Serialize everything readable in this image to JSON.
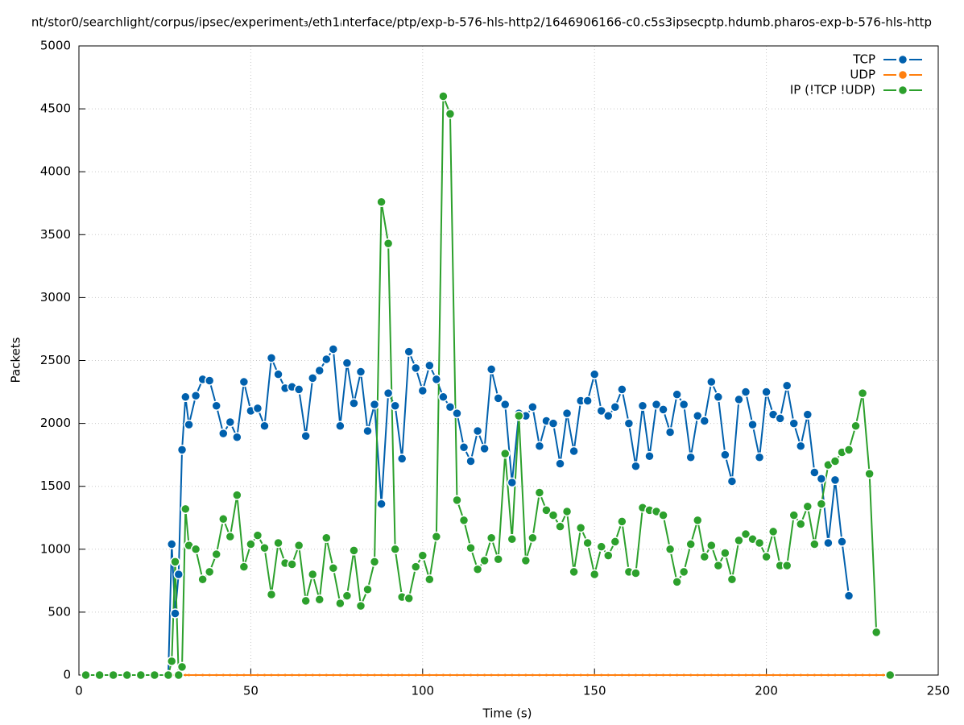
{
  "chart_data": {
    "type": "line",
    "title": "nt/stor0/searchlight/corpus/ipsec/experiment₃/eth1ᵢnterface/ptp/exp-b-576-hls-http2/1646906166-c0.c5s3ipsecptp.hdumb.pharos-exp-b-576-hls-http",
    "x_label": "Time (s)",
    "y_label": "Packets",
    "x": [
      2,
      6,
      10,
      14,
      18,
      22,
      26,
      27,
      28,
      29,
      30,
      31,
      32,
      34,
      36,
      38,
      40,
      42,
      44,
      46,
      48,
      50,
      52,
      54,
      56,
      58,
      60,
      62,
      64,
      66,
      68,
      70,
      72,
      74,
      76,
      78,
      80,
      82,
      84,
      86,
      88,
      90,
      92,
      94,
      96,
      98,
      100,
      102,
      104,
      106,
      108,
      110,
      112,
      114,
      116,
      118,
      120,
      122,
      124,
      126,
      128,
      130,
      132,
      134,
      136,
      138,
      140,
      142,
      144,
      146,
      148,
      150,
      152,
      154,
      156,
      158,
      160,
      162,
      164,
      166,
      168,
      170,
      172,
      174,
      176,
      178,
      180,
      182,
      184,
      186,
      188,
      190,
      192,
      194,
      196,
      198,
      200,
      202,
      204,
      206,
      208,
      210,
      212,
      214,
      216,
      218,
      220,
      222,
      224,
      226,
      228,
      230,
      232,
      234,
      236
    ],
    "series": [
      {
        "name": "TCP",
        "color": "#0060ad",
        "values": [
          0,
          0,
          0,
          0,
          0,
          0,
          0,
          1040,
          490,
          800,
          1790,
          2210,
          1990,
          2220,
          2350,
          2340,
          2140,
          1920,
          2010,
          1890,
          2330,
          2100,
          2120,
          1980,
          2520,
          2390,
          2280,
          2290,
          2270,
          1900,
          2360,
          2420,
          2510,
          2590,
          1980,
          2480,
          2160,
          2410,
          1940,
          2150,
          1360,
          2240,
          2140,
          1720,
          2570,
          2440,
          2260,
          2460,
          2350,
          2210,
          2130,
          2080,
          1810,
          1700,
          1940,
          1800,
          2430,
          2200,
          2150,
          1530,
          2080,
          2060,
          2130,
          1820,
          2020,
          2000,
          1680,
          2080,
          1780,
          2180,
          2180,
          2390,
          2100,
          2060,
          2130,
          2270,
          2000,
          1660,
          2140,
          1740,
          2150,
          2110,
          1930,
          2230,
          2150,
          1730,
          2060,
          2020,
          2330,
          2210,
          1750,
          1540,
          2190,
          2250,
          1990,
          1730,
          2250,
          2070,
          2040,
          2300,
          2000,
          1820,
          2070,
          1610,
          1560,
          1050,
          1550,
          1060,
          630,
          null,
          null,
          null,
          null,
          null,
          null
        ]
      },
      {
        "name": "UDP",
        "color": "#ff7f0e",
        "values": [
          0,
          0,
          0,
          0,
          0,
          0,
          0,
          0,
          0,
          0,
          0,
          0,
          0,
          0,
          0,
          0,
          0,
          0,
          0,
          0,
          0,
          0,
          0,
          0,
          0,
          0,
          0,
          0,
          0,
          0,
          0,
          0,
          0,
          0,
          0,
          0,
          0,
          0,
          0,
          0,
          0,
          0,
          0,
          0,
          0,
          0,
          0,
          0,
          0,
          0,
          0,
          0,
          0,
          0,
          0,
          0,
          0,
          0,
          0,
          0,
          0,
          0,
          0,
          0,
          0,
          0,
          0,
          0,
          0,
          0,
          0,
          0,
          0,
          0,
          0,
          0,
          0,
          0,
          0,
          0,
          0,
          0,
          0,
          0,
          0,
          0,
          0,
          0,
          0,
          0,
          0,
          0,
          0,
          0,
          0,
          0,
          0,
          0,
          0,
          0,
          0,
          0,
          0,
          0,
          0,
          0,
          0,
          0,
          0,
          0,
          0,
          0,
          0,
          0,
          0
        ]
      },
      {
        "name": "IP (!TCP  !UDP)",
        "color": "#2ca02c",
        "values": [
          0,
          0,
          0,
          0,
          0,
          0,
          0,
          110,
          900,
          0,
          65,
          1320,
          1030,
          1000,
          760,
          820,
          960,
          1240,
          1100,
          1430,
          860,
          1040,
          1110,
          1010,
          640,
          1050,
          890,
          880,
          1030,
          590,
          800,
          600,
          1090,
          850,
          570,
          630,
          990,
          550,
          680,
          900,
          3760,
          3430,
          1000,
          620,
          610,
          860,
          950,
          760,
          1100,
          4600,
          4460,
          1390,
          1230,
          1010,
          840,
          910,
          1090,
          920,
          1760,
          1080,
          2060,
          910,
          1090,
          1450,
          1310,
          1270,
          1180,
          1300,
          820,
          1170,
          1050,
          800,
          1020,
          950,
          1060,
          1220,
          820,
          810,
          1330,
          1310,
          1300,
          1270,
          1000,
          740,
          820,
          1040,
          1230,
          940,
          1030,
          870,
          970,
          760,
          1070,
          1120,
          1080,
          1050,
          940,
          1140,
          870,
          870,
          1270,
          1200,
          1340,
          1040,
          1360,
          1670,
          1700,
          1770,
          1790,
          1980,
          2240,
          1600,
          340,
          null,
          0
        ]
      }
    ],
    "xlim": [
      0,
      250
    ],
    "xticks": [
      0,
      50,
      100,
      150,
      200,
      250
    ],
    "ylim": [
      0,
      5000
    ],
    "yticks": [
      0,
      500,
      1000,
      1500,
      2000,
      2500,
      3000,
      3500,
      4000,
      4500,
      5000
    ],
    "grid": true,
    "legend": "top-right"
  }
}
